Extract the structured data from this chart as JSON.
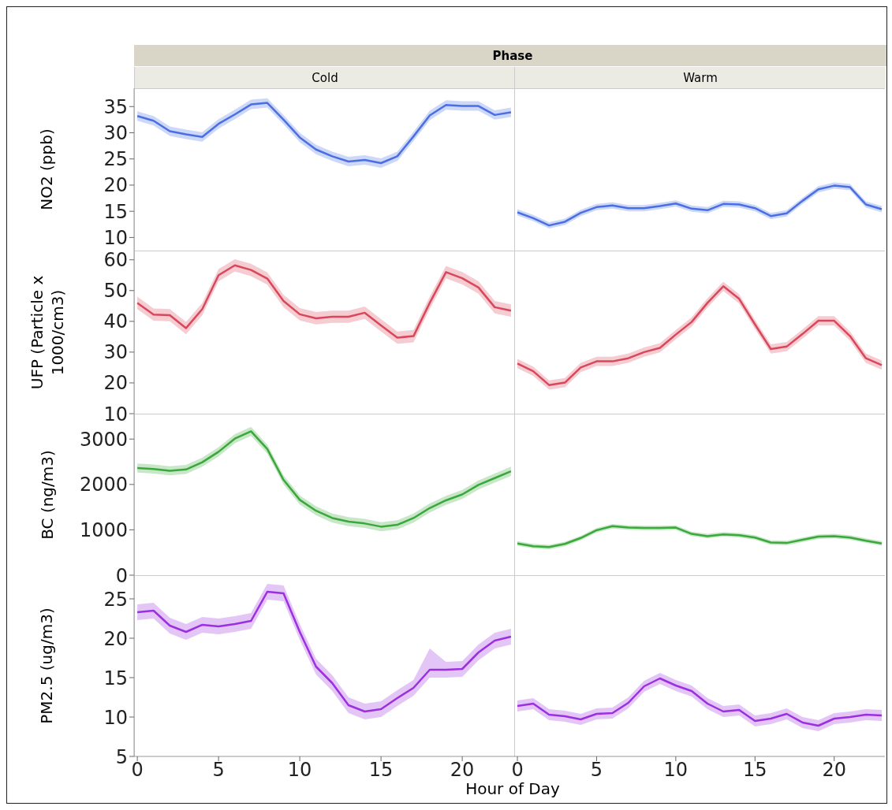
{
  "chart_data": [
    {
      "type": "line",
      "title": "Cold",
      "annotations": [
        "Phase"
      ],
      "ylabel": "NO2 (ppb)",
      "tick_labels": "y",
      "x": [
        0,
        1,
        2,
        3,
        4,
        5,
        6,
        7,
        8,
        9,
        10,
        11,
        12,
        13,
        14,
        15,
        16,
        17,
        18,
        19,
        20,
        21,
        22,
        23
      ],
      "xlim": [
        -0.2,
        23.2
      ],
      "xticks": [
        0,
        5,
        10,
        15,
        20
      ],
      "ylim": [
        7.5,
        38.5
      ],
      "yticks": [
        10,
        15,
        20,
        25,
        30,
        35
      ],
      "series": [
        {
          "color": "#4a6fe3",
          "values": [
            33.2,
            32.3,
            30.3,
            29.7,
            29.2,
            31.7,
            33.5,
            35.4,
            35.7,
            32.5,
            29.1,
            26.8,
            25.5,
            24.5,
            24.8,
            24.2,
            25.5,
            29.3,
            33.3,
            35.3,
            35.1,
            35.1,
            33.4,
            33.9
          ],
          "lower": [
            32.3,
            31.4,
            29.4,
            28.8,
            28.3,
            30.8,
            32.6,
            34.5,
            34.8,
            31.6,
            28.2,
            25.9,
            24.6,
            23.6,
            23.9,
            23.3,
            24.6,
            28.4,
            32.4,
            34.4,
            34.2,
            34.2,
            32.5,
            33.0
          ],
          "upper": [
            34.1,
            33.2,
            31.2,
            30.6,
            30.1,
            32.6,
            34.4,
            36.3,
            36.6,
            33.4,
            30.0,
            27.7,
            26.4,
            25.4,
            25.7,
            25.1,
            26.4,
            30.2,
            34.2,
            36.2,
            36.0,
            36.0,
            34.3,
            34.8
          ]
        }
      ]
    },
    {
      "type": "line",
      "title": "Warm",
      "tick_labels": false,
      "x": [
        0,
        1,
        2,
        3,
        4,
        5,
        6,
        7,
        8,
        9,
        10,
        11,
        12,
        13,
        14,
        15,
        16,
        17,
        18,
        19,
        20,
        21,
        22,
        23
      ],
      "xlim": [
        -0.2,
        23.2
      ],
      "xticks": [
        0,
        5,
        10,
        15,
        20
      ],
      "ylim": [
        7.5,
        38.5
      ],
      "yticks": [
        10,
        15,
        20,
        25,
        30,
        35
      ],
      "series": [
        {
          "color": "#4a6fe3",
          "values": [
            14.8,
            13.7,
            12.3,
            13.0,
            14.7,
            15.8,
            16.1,
            15.6,
            15.6,
            16.0,
            16.5,
            15.5,
            15.2,
            16.4,
            16.3,
            15.6,
            14.1,
            14.6,
            17.0,
            19.2,
            19.9,
            19.6,
            16.3,
            15.4
          ],
          "lower": [
            14.2,
            13.1,
            11.7,
            12.4,
            14.1,
            15.2,
            15.5,
            15.0,
            15.0,
            15.4,
            15.9,
            14.9,
            14.6,
            15.8,
            15.7,
            15.0,
            13.5,
            14.0,
            16.4,
            18.6,
            19.3,
            19.0,
            15.7,
            14.8
          ],
          "upper": [
            15.4,
            14.3,
            12.9,
            13.6,
            15.3,
            16.4,
            16.7,
            16.2,
            16.2,
            16.6,
            17.1,
            16.1,
            15.8,
            17.0,
            16.9,
            16.2,
            14.7,
            15.2,
            17.6,
            19.8,
            20.5,
            20.2,
            16.9,
            16.0
          ]
        }
      ]
    },
    {
      "type": "line",
      "ylabel": "UFP (Particle x 1000/cm3)",
      "tick_labels": "y",
      "x": [
        0,
        1,
        2,
        3,
        4,
        5,
        6,
        7,
        8,
        9,
        10,
        11,
        12,
        13,
        14,
        15,
        16,
        17,
        18,
        19,
        20,
        21,
        22,
        23
      ],
      "xlim": [
        -0.2,
        23.2
      ],
      "xticks": [
        0,
        5,
        10,
        15,
        20
      ],
      "ylim": [
        10,
        63
      ],
      "yticks": [
        10,
        20,
        30,
        40,
        50,
        60
      ],
      "series": [
        {
          "color": "#d9475b",
          "values": [
            46,
            42.2,
            42,
            37.8,
            44,
            55,
            58.2,
            56.7,
            53.9,
            46.6,
            42.3,
            41,
            41.5,
            41.5,
            42.8,
            38.7,
            34.7,
            35.2,
            46,
            56,
            54,
            51,
            44.6,
            43.5
          ],
          "lower": [
            44,
            40.2,
            40,
            35.8,
            42,
            53,
            56.2,
            54.7,
            51.9,
            44.6,
            40.3,
            39,
            39.5,
            39.5,
            40.8,
            36.7,
            32.7,
            33.2,
            44,
            54,
            52,
            49,
            42.6,
            41.5
          ],
          "upper": [
            48,
            44.2,
            44,
            39.8,
            46,
            57,
            60.2,
            58.7,
            55.9,
            48.6,
            44.3,
            43,
            43.5,
            43.5,
            44.8,
            40.7,
            36.7,
            37.2,
            48,
            58,
            56,
            53,
            46.6,
            45.5
          ]
        }
      ]
    },
    {
      "type": "line",
      "tick_labels": false,
      "x": [
        0,
        1,
        2,
        3,
        4,
        5,
        6,
        7,
        8,
        9,
        10,
        11,
        12,
        13,
        14,
        15,
        16,
        17,
        18,
        19,
        20,
        21,
        22,
        23
      ],
      "xlim": [
        -0.2,
        23.2
      ],
      "xticks": [
        0,
        5,
        10,
        15,
        20
      ],
      "ylim": [
        10,
        63
      ],
      "yticks": [
        10,
        20,
        30,
        40,
        50,
        60
      ],
      "series": [
        {
          "color": "#d9475b",
          "values": [
            26.3,
            23.8,
            19.3,
            20.1,
            25,
            27,
            27,
            28,
            30,
            31.4,
            35.7,
            39.8,
            46,
            51.4,
            47.3,
            39,
            31,
            31.8,
            35.9,
            40.2,
            40.2,
            35.2,
            28,
            25.8
          ],
          "lower": [
            24.8,
            22.3,
            17.8,
            18.6,
            23.5,
            25.5,
            25.5,
            26.5,
            28.5,
            29.9,
            34.2,
            38.3,
            44.5,
            49.9,
            45.8,
            37.5,
            29.5,
            30.3,
            34.4,
            38.7,
            38.7,
            33.7,
            26.5,
            24.3
          ],
          "upper": [
            27.8,
            25.3,
            20.8,
            21.6,
            26.5,
            28.5,
            28.5,
            29.5,
            31.5,
            32.9,
            37.2,
            41.3,
            47.5,
            52.9,
            48.8,
            40.5,
            32.5,
            33.3,
            37.4,
            41.7,
            41.7,
            36.7,
            29.5,
            27.3
          ]
        }
      ]
    },
    {
      "type": "line",
      "ylabel": "BC (ng/m3)",
      "tick_labels": "y",
      "x": [
        0,
        1,
        2,
        3,
        4,
        5,
        6,
        7,
        8,
        9,
        10,
        11,
        12,
        13,
        14,
        15,
        16,
        17,
        18,
        19,
        20,
        21,
        22,
        23
      ],
      "xlim": [
        -0.2,
        23.2
      ],
      "xticks": [
        0,
        5,
        10,
        15,
        20
      ],
      "ylim": [
        0,
        3560
      ],
      "yticks": [
        0,
        1000,
        2000,
        3000
      ],
      "series": [
        {
          "color": "#3aa83a",
          "values": [
            2360,
            2340,
            2300,
            2330,
            2490,
            2720,
            3010,
            3170,
            2780,
            2100,
            1660,
            1420,
            1260,
            1180,
            1140,
            1070,
            1110,
            1260,
            1480,
            1650,
            1780,
            1990,
            2140,
            2290
          ],
          "lower": [
            2260,
            2240,
            2200,
            2230,
            2390,
            2620,
            2910,
            3070,
            2680,
            2000,
            1560,
            1320,
            1160,
            1080,
            1040,
            970,
            1010,
            1160,
            1380,
            1550,
            1680,
            1890,
            2040,
            2190
          ],
          "upper": [
            2460,
            2440,
            2400,
            2430,
            2590,
            2820,
            3110,
            3270,
            2880,
            2200,
            1760,
            1520,
            1360,
            1280,
            1240,
            1170,
            1210,
            1360,
            1580,
            1750,
            1880,
            2090,
            2240,
            2390
          ]
        }
      ]
    },
    {
      "type": "line",
      "tick_labels": false,
      "x": [
        0,
        1,
        2,
        3,
        4,
        5,
        6,
        7,
        8,
        9,
        10,
        11,
        12,
        13,
        14,
        15,
        16,
        17,
        18,
        19,
        20,
        21,
        22,
        23
      ],
      "xlim": [
        -0.2,
        23.2
      ],
      "xticks": [
        0,
        5,
        10,
        15,
        20
      ],
      "ylim": [
        0,
        3560
      ],
      "yticks": [
        0,
        1000,
        2000,
        3000
      ],
      "series": [
        {
          "color": "#3aa83a",
          "values": [
            700,
            640,
            620,
            690,
            820,
            990,
            1080,
            1050,
            1040,
            1040,
            1050,
            910,
            860,
            900,
            880,
            830,
            720,
            710,
            780,
            850,
            860,
            830,
            760,
            700
          ],
          "lower": [
            650,
            590,
            570,
            640,
            770,
            940,
            1030,
            1000,
            990,
            990,
            1000,
            860,
            810,
            850,
            830,
            780,
            670,
            660,
            730,
            800,
            810,
            780,
            710,
            650
          ],
          "upper": [
            750,
            690,
            670,
            740,
            870,
            1040,
            1130,
            1100,
            1090,
            1090,
            1100,
            960,
            910,
            950,
            930,
            880,
            770,
            760,
            830,
            900,
            910,
            880,
            810,
            750
          ]
        }
      ]
    },
    {
      "type": "line",
      "ylabel": "PM2.5 (ug/m3)",
      "xlabel": "Hour of Day",
      "x": [
        0,
        1,
        2,
        3,
        4,
        5,
        6,
        7,
        8,
        9,
        10,
        11,
        12,
        13,
        14,
        15,
        16,
        17,
        18,
        19,
        20,
        21,
        22,
        23
      ],
      "xlim": [
        -0.2,
        23.2
      ],
      "xticks": [
        0,
        5,
        10,
        15,
        20
      ],
      "ylim": [
        5,
        28
      ],
      "yticks": [
        5,
        10,
        15,
        20,
        25
      ],
      "series": [
        {
          "color": "#9b30e0",
          "values": [
            23.3,
            23.5,
            21.6,
            20.8,
            21.7,
            21.5,
            21.8,
            22.2,
            25.9,
            25.7,
            20.8,
            16.4,
            14.3,
            11.5,
            10.7,
            11,
            12.4,
            13.7,
            16,
            16,
            16.1,
            18.2,
            19.7,
            20.2
          ],
          "lower": [
            22.3,
            22.5,
            20.6,
            19.8,
            20.7,
            20.5,
            20.8,
            21.2,
            24.9,
            24.7,
            19.8,
            15.4,
            13.3,
            10.5,
            9.7,
            10,
            11.4,
            12.7,
            15,
            15,
            15.1,
            17.2,
            18.7,
            19.2
          ],
          "upper": [
            24.3,
            24.5,
            22.6,
            21.8,
            22.7,
            22.5,
            22.8,
            23.2,
            26.9,
            26.7,
            21.8,
            17.4,
            15.3,
            12.5,
            11.7,
            12,
            13.4,
            14.7,
            18.7,
            17,
            17.1,
            19.2,
            20.7,
            21.2
          ]
        }
      ]
    },
    {
      "type": "line",
      "tick_labels": "x",
      "x": [
        0,
        1,
        2,
        3,
        4,
        5,
        6,
        7,
        8,
        9,
        10,
        11,
        12,
        13,
        14,
        15,
        16,
        17,
        18,
        19,
        20,
        21,
        22,
        23
      ],
      "xlim": [
        -0.2,
        23.2
      ],
      "xticks": [
        0,
        5,
        10,
        15,
        20
      ],
      "ylim": [
        5,
        28
      ],
      "yticks": [
        5,
        10,
        15,
        20,
        25
      ],
      "series": [
        {
          "color": "#9b30e0",
          "values": [
            11.4,
            11.7,
            10.3,
            10.1,
            9.7,
            10.4,
            10.5,
            11.8,
            13.9,
            14.9,
            14,
            13.3,
            11.7,
            10.7,
            10.9,
            9.5,
            9.8,
            10.4,
            9.3,
            8.9,
            9.8,
            10,
            10.3,
            10.2
          ],
          "lower": [
            10.7,
            11.0,
            9.6,
            9.4,
            9.0,
            9.7,
            9.8,
            11.1,
            13.2,
            14.2,
            13.3,
            12.6,
            11.0,
            10.0,
            10.2,
            8.8,
            9.1,
            9.7,
            8.6,
            8.2,
            9.1,
            9.3,
            9.6,
            9.5
          ],
          "upper": [
            12.1,
            12.4,
            11.0,
            10.8,
            10.4,
            11.1,
            11.2,
            12.5,
            14.6,
            15.6,
            14.7,
            14.0,
            12.4,
            11.4,
            11.6,
            10.2,
            10.5,
            11.1,
            10.0,
            9.6,
            10.5,
            10.7,
            11.0,
            10.9
          ]
        }
      ]
    }
  ]
}
